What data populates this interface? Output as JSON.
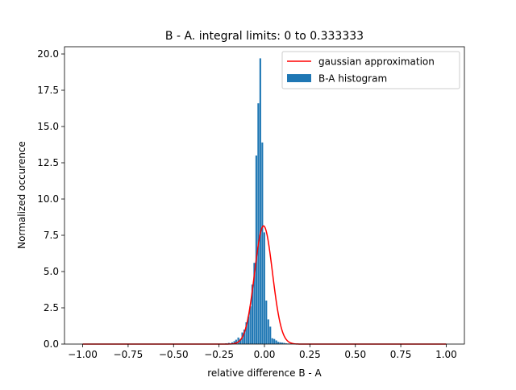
{
  "chart_data": {
    "type": "bar",
    "title": "B - A. integral limits: 0 to 0.333333",
    "xlabel": "relative difference B - A",
    "ylabel": "Normalized occurence",
    "xlim": [
      -1.1,
      1.1
    ],
    "ylim": [
      0,
      20.5
    ],
    "xticks": [
      -1.0,
      -0.75,
      -0.5,
      -0.25,
      0.0,
      0.25,
      0.5,
      0.75,
      1.0
    ],
    "xtick_labels": [
      "−1.00",
      "−0.75",
      "−0.50",
      "−0.25",
      "0.00",
      "0.25",
      "0.50",
      "0.75",
      "1.00"
    ],
    "yticks": [
      0.0,
      2.5,
      5.0,
      7.5,
      10.0,
      12.5,
      15.0,
      17.5,
      20.0
    ],
    "ytick_labels": [
      "0.0",
      "2.5",
      "5.0",
      "7.5",
      "10.0",
      "12.5",
      "15.0",
      "17.5",
      "20.0"
    ],
    "grid": false,
    "legend_position": "upper right",
    "series": [
      {
        "name": "B-A histogram",
        "kind": "bar",
        "color": "#1f77b4",
        "bin_width": 0.0111,
        "x": [
          -0.255,
          -0.21,
          -0.195,
          -0.177,
          -0.165,
          -0.155,
          -0.143,
          -0.132,
          -0.121,
          -0.11,
          -0.099,
          -0.088,
          -0.077,
          -0.066,
          -0.055,
          -0.044,
          -0.033,
          -0.022,
          -0.011,
          0.0,
          0.011,
          0.022,
          0.033,
          0.044,
          0.055,
          0.066,
          0.077,
          0.088,
          0.099,
          0.11,
          0.121,
          0.132,
          0.143,
          0.155,
          0.165,
          0.21
        ],
        "values": [
          0.02,
          0.05,
          0.08,
          0.12,
          0.2,
          0.3,
          0.45,
          0.35,
          0.8,
          1.0,
          1.5,
          1.9,
          2.6,
          4.1,
          5.6,
          13.0,
          16.6,
          19.7,
          13.9,
          7.7,
          3.0,
          1.7,
          1.2,
          0.4,
          0.35,
          0.25,
          0.15,
          0.12,
          0.1,
          0.08,
          0.05,
          0.04,
          0.03,
          0.02,
          0.02,
          0.02
        ]
      },
      {
        "name": "gaussian approximation",
        "kind": "line",
        "color": "#ff0000",
        "mean": -0.005,
        "sigma": 0.049,
        "peak": 8.15,
        "x_range": [
          -1.0,
          1.0
        ]
      }
    ]
  }
}
